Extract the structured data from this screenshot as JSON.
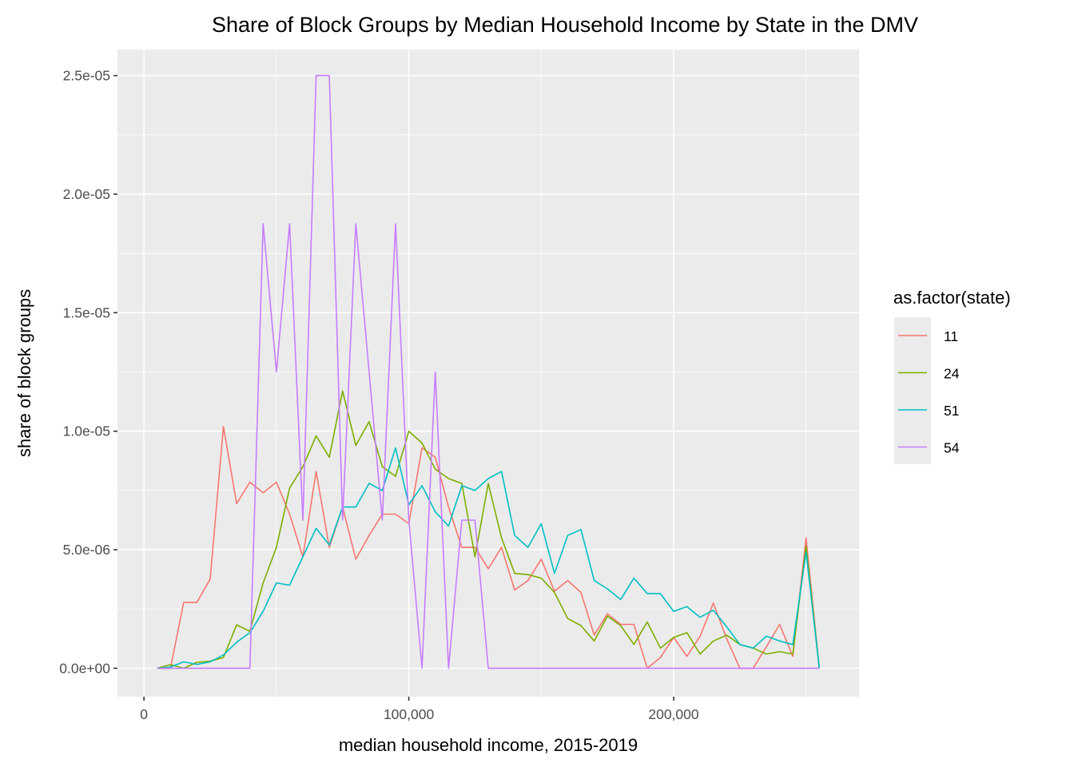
{
  "chart_data": {
    "type": "line",
    "title": "Share of Block Groups by Median Household Income by State in the DMV",
    "xlabel": "median household income, 2015-2019",
    "ylabel": "share of block groups",
    "xlim": [
      -10000,
      270000
    ],
    "ylim": [
      -1.2e-06,
      2.61e-05
    ],
    "x_ticks": [
      0,
      100000,
      200000
    ],
    "x_tick_labels": [
      "0",
      "100,000",
      "200,000"
    ],
    "y_ticks": [
      0,
      5e-06,
      1e-05,
      1.5e-05,
      2e-05,
      2.5e-05
    ],
    "y_tick_labels": [
      "0.0e+00",
      "5.0e-06",
      "1.0e-05",
      "1.5e-05",
      "2.0e-05",
      "2.5e-05"
    ],
    "grid": true,
    "legend": {
      "title": "as.factor(state)",
      "position": "right"
    },
    "x": [
      5000,
      10000,
      15000,
      20000,
      25000,
      30000,
      35000,
      40000,
      45000,
      50000,
      55000,
      60000,
      65000,
      70000,
      75000,
      80000,
      85000,
      90000,
      95000,
      100000,
      105000,
      110000,
      115000,
      120000,
      125000,
      130000,
      135000,
      140000,
      145000,
      150000,
      155000,
      160000,
      165000,
      170000,
      175000,
      180000,
      185000,
      190000,
      195000,
      200000,
      205000,
      210000,
      215000,
      220000,
      225000,
      230000,
      235000,
      240000,
      245000,
      250000,
      255000
    ],
    "series": [
      {
        "name": "11",
        "color": "#F8766D",
        "values": [
          0,
          0,
          2.78e-06,
          2.78e-06,
          3.76e-06,
          1.02e-05,
          6.95e-06,
          7.85e-06,
          7.4e-06,
          7.85e-06,
          6.5e-06,
          4.7e-06,
          8.3e-06,
          5.1e-06,
          6.8e-06,
          4.6e-06,
          5.6e-06,
          6.5e-06,
          6.5e-06,
          6.1e-06,
          9.3e-06,
          8.9e-06,
          6.8e-06,
          5.1e-06,
          5.1e-06,
          4.2e-06,
          5.1e-06,
          3.3e-06,
          3.7e-06,
          4.6e-06,
          3.25e-06,
          3.7e-06,
          3.2e-06,
          1.4e-06,
          2.3e-06,
          1.85e-06,
          1.85e-06,
          0,
          4.5e-07,
          1.3e-06,
          5e-07,
          1.35e-06,
          2.75e-06,
          1.25e-06,
          0,
          0,
          9e-07,
          1.85e-06,
          5e-07,
          5.5e-06,
          0
        ]
      },
      {
        "name": "24",
        "color": "#7CAE00",
        "values": [
          0,
          1.5e-07,
          0,
          2.5e-07,
          3e-07,
          4.5e-07,
          1.83e-06,
          1.56e-06,
          3.6e-06,
          5.1e-06,
          7.6e-06,
          8.5e-06,
          9.8e-06,
          8.9e-06,
          1.17e-05,
          9.4e-06,
          1.04e-05,
          8.5e-06,
          8.1e-06,
          1e-05,
          9.5e-06,
          8.4e-06,
          8e-06,
          7.8e-06,
          4.7e-06,
          7.8e-06,
          5.5e-06,
          4e-06,
          3.95e-06,
          3.8e-06,
          3.2e-06,
          2.1e-06,
          1.8e-06,
          1.15e-06,
          2.2e-06,
          1.8e-06,
          1e-06,
          1.95e-06,
          8.5e-07,
          1.3e-06,
          1.5e-06,
          6e-07,
          1.15e-06,
          1.4e-06,
          1e-06,
          8.5e-07,
          6e-07,
          7e-07,
          6e-07,
          5.15e-06,
          0
        ]
      },
      {
        "name": "51",
        "color": "#00BFC4",
        "values": [
          0,
          5e-08,
          2.7e-07,
          1.6e-07,
          2.7e-07,
          5.6e-07,
          1.1e-06,
          1.5e-06,
          2.4e-06,
          3.6e-06,
          3.5e-06,
          4.7e-06,
          5.9e-06,
          5.2e-06,
          6.8e-06,
          6.8e-06,
          7.8e-06,
          7.5e-06,
          9.3e-06,
          6.9e-06,
          7.7e-06,
          6.6e-06,
          6e-06,
          7.7e-06,
          7.5e-06,
          8e-06,
          8.3e-06,
          5.6e-06,
          5.1e-06,
          6.1e-06,
          4e-06,
          5.6e-06,
          5.85e-06,
          3.7e-06,
          3.35e-06,
          2.9e-06,
          3.8e-06,
          3.15e-06,
          3.15e-06,
          2.4e-06,
          2.6e-06,
          2.15e-06,
          2.45e-06,
          1.75e-06,
          1e-06,
          8.5e-07,
          1.35e-06,
          1.15e-06,
          1e-06,
          4.9e-06,
          0
        ]
      },
      {
        "name": "54",
        "color": "#C77CFF",
        "values": [
          0,
          0,
          0,
          0,
          0,
          0,
          0,
          0,
          1.875e-05,
          1.25e-05,
          1.875e-05,
          6.25e-06,
          2.5e-05,
          2.5e-05,
          6.25e-06,
          1.875e-05,
          1.25e-05,
          6.25e-06,
          1.875e-05,
          6.25e-06,
          0,
          1.25e-05,
          0,
          6.25e-06,
          6.25e-06,
          0,
          0,
          0,
          0,
          0,
          0,
          0,
          0,
          0,
          0,
          0,
          0,
          0,
          0,
          0,
          0,
          0,
          0,
          0,
          0,
          0,
          0,
          0,
          0,
          0,
          0
        ]
      }
    ]
  }
}
